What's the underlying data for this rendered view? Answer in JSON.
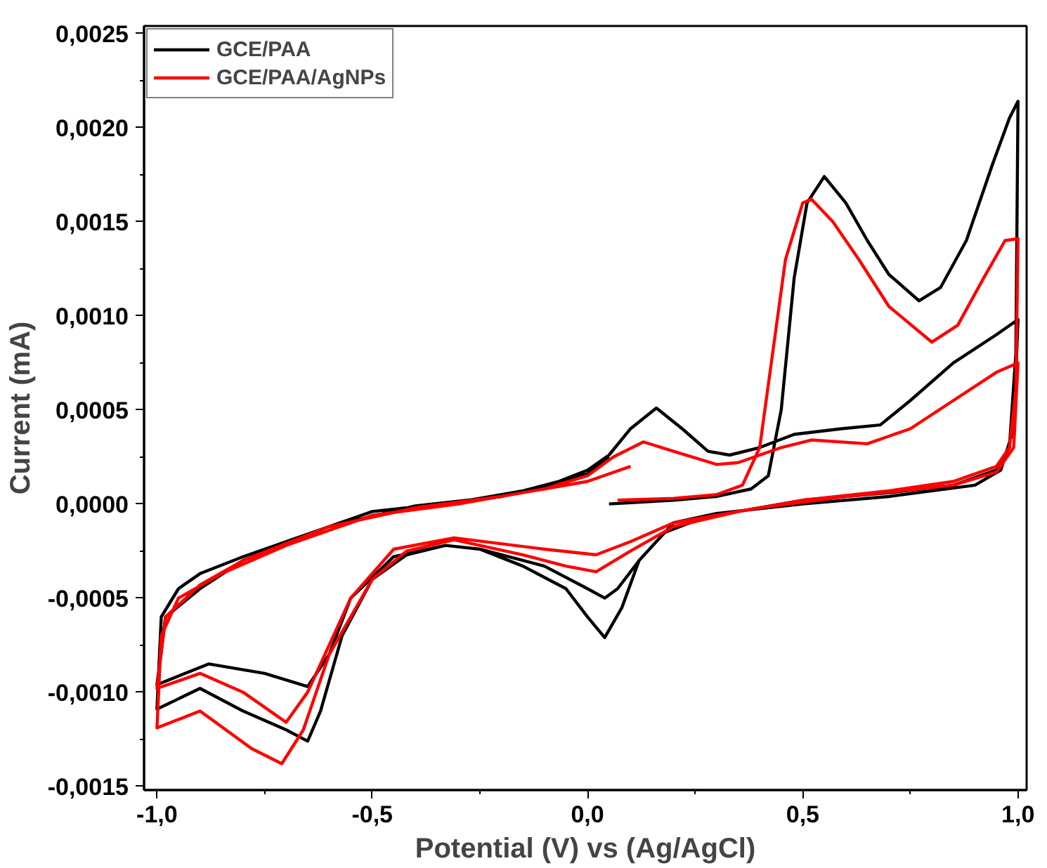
{
  "chart_data": {
    "type": "line",
    "xlabel": "Potential (V) vs (Ag/AgCl)",
    "ylabel": "Current (mA)",
    "xlim": [
      -1.03,
      1.02
    ],
    "ylim": [
      -0.00152,
      0.00254
    ],
    "xticks": [
      {
        "value": -1.0,
        "label": "-1,0"
      },
      {
        "value": -0.75,
        "label": null
      },
      {
        "value": -0.5,
        "label": "-0,5"
      },
      {
        "value": -0.25,
        "label": null
      },
      {
        "value": 0.0,
        "label": "0,0"
      },
      {
        "value": 0.25,
        "label": null
      },
      {
        "value": 0.5,
        "label": "0,5"
      },
      {
        "value": 0.75,
        "label": null
      },
      {
        "value": 1.0,
        "label": "1,0"
      }
    ],
    "yticks": [
      {
        "value": -0.0015,
        "label": "-0,0015"
      },
      {
        "value": -0.00125,
        "label": null
      },
      {
        "value": -0.001,
        "label": "-0,0010"
      },
      {
        "value": -0.00075,
        "label": null
      },
      {
        "value": -0.0005,
        "label": "-0,0005"
      },
      {
        "value": -0.00025,
        "label": null
      },
      {
        "value": 0.0,
        "label": "0,0000"
      },
      {
        "value": 0.00025,
        "label": null
      },
      {
        "value": 0.0005,
        "label": "0,0005"
      },
      {
        "value": 0.00075,
        "label": null
      },
      {
        "value": 0.001,
        "label": "0,0010"
      },
      {
        "value": 0.00125,
        "label": null
      },
      {
        "value": 0.0015,
        "label": "0,0015"
      },
      {
        "value": 0.00175,
        "label": null
      },
      {
        "value": 0.002,
        "label": "0,0020"
      },
      {
        "value": 0.00225,
        "label": null
      },
      {
        "value": 0.0025,
        "label": "0,0025"
      }
    ],
    "grid": false,
    "legend": "top left",
    "marker": "none",
    "line_style": "solid",
    "series": [
      {
        "name": "GCE/PAA",
        "color": "#000000",
        "x": [
          0.05,
          0.2,
          0.3,
          0.38,
          0.42,
          0.45,
          0.48,
          0.51,
          0.55,
          0.6,
          0.65,
          0.7,
          0.77,
          0.82,
          0.88,
          0.94,
          0.98,
          1.0,
          0.995,
          0.98,
          0.95,
          0.85,
          0.7,
          0.5,
          0.35,
          0.25,
          0.18,
          0.12,
          0.08,
          0.04,
          0.0,
          -0.05,
          -0.15,
          -0.25,
          -0.33,
          -0.42,
          -0.5,
          -0.57,
          -0.62,
          -0.65,
          -0.7,
          -0.8,
          -0.9,
          -1.0,
          -0.99,
          -0.95,
          -0.9,
          -0.8,
          -0.65,
          -0.5,
          -0.3,
          -0.1,
          0.0,
          0.05,
          0.1,
          0.16,
          0.22,
          0.28,
          0.33,
          0.4,
          0.48,
          0.59,
          0.68,
          0.75,
          0.85,
          0.95,
          1.0,
          0.99,
          0.96,
          0.9,
          0.7,
          0.5,
          0.3,
          0.2,
          0.12,
          0.07,
          0.04,
          0.0,
          -0.1,
          -0.25,
          -0.33,
          -0.45,
          -0.55,
          -0.6,
          -0.65,
          -0.75,
          -0.88,
          -1.0,
          -0.98,
          -0.9,
          -0.8,
          -0.6,
          -0.4,
          -0.2,
          0.0,
          0.05
        ],
        "values": [
          0.0,
          2e-05,
          4e-05,
          8e-05,
          0.00015,
          0.0005,
          0.0012,
          0.0016,
          0.00174,
          0.0016,
          0.0014,
          0.00122,
          0.00108,
          0.00115,
          0.0014,
          0.0018,
          0.00205,
          0.00214,
          0.0008,
          0.0003,
          0.00018,
          0.0001,
          6e-05,
          2e-05,
          -4e-05,
          -9e-05,
          -0.00015,
          -0.0003,
          -0.00055,
          -0.00071,
          -0.0006,
          -0.00045,
          -0.00033,
          -0.00024,
          -0.00022,
          -0.00027,
          -0.0004,
          -0.0007,
          -0.0011,
          -0.00126,
          -0.0012,
          -0.0011,
          -0.00098,
          -0.00109,
          -0.0006,
          -0.00045,
          -0.00037,
          -0.00028,
          -0.00016,
          -4e-05,
          1e-05,
          9e-05,
          0.00018,
          0.00026,
          0.0004,
          0.00051,
          0.0004,
          0.00028,
          0.00026,
          0.0003,
          0.00037,
          0.0004,
          0.00042,
          0.00055,
          0.00075,
          0.0009,
          0.00098,
          0.0004,
          0.00018,
          0.0001,
          4e-05,
          0.0,
          -5e-05,
          -0.0001,
          -0.0003,
          -0.00045,
          -0.0005,
          -0.00045,
          -0.00033,
          -0.00024,
          -0.00022,
          -0.00028,
          -0.0005,
          -0.0008,
          -0.00097,
          -0.0009,
          -0.00085,
          -0.00096,
          -0.0006,
          -0.00045,
          -0.0003,
          -0.00012,
          -1e-05,
          4e-05,
          0.00016,
          0.00025
        ]
      },
      {
        "name": "GCE/PAA/AgNPs",
        "color": "#ff0000",
        "x": [
          0.07,
          0.2,
          0.3,
          0.36,
          0.4,
          0.43,
          0.46,
          0.5,
          0.52,
          0.57,
          0.63,
          0.7,
          0.8,
          0.86,
          0.92,
          0.97,
          1.0,
          0.995,
          0.98,
          0.95,
          0.85,
          0.7,
          0.5,
          0.35,
          0.2,
          0.1,
          0.02,
          -0.05,
          -0.15,
          -0.31,
          -0.42,
          -0.5,
          -0.6,
          -0.66,
          -0.71,
          -0.78,
          -0.9,
          -1.0,
          -0.99,
          -0.95,
          -0.85,
          -0.7,
          -0.5,
          -0.3,
          -0.1,
          0.0,
          0.06,
          0.13,
          0.2,
          0.3,
          0.35,
          0.45,
          0.52,
          0.65,
          0.75,
          0.85,
          0.95,
          1.0,
          0.99,
          0.95,
          0.85,
          0.6,
          0.4,
          0.2,
          0.1,
          0.02,
          -0.1,
          -0.31,
          -0.45,
          -0.55,
          -0.65,
          -0.7,
          -0.8,
          -0.9,
          -1.0,
          -0.98,
          -0.9,
          -0.8,
          -0.6,
          -0.4,
          -0.2,
          0.0,
          0.1
        ],
        "values": [
          2e-05,
          3e-05,
          5e-05,
          0.0001,
          0.0003,
          0.0008,
          0.0013,
          0.0016,
          0.00162,
          0.0015,
          0.0013,
          0.00105,
          0.00086,
          0.00095,
          0.0012,
          0.0014,
          0.00141,
          0.0006,
          0.0003,
          0.0002,
          0.00012,
          7e-05,
          2e-05,
          -4e-05,
          -0.00012,
          -0.00025,
          -0.00036,
          -0.00033,
          -0.00027,
          -0.00019,
          -0.00025,
          -0.0004,
          -0.0008,
          -0.0012,
          -0.00138,
          -0.0013,
          -0.0011,
          -0.00119,
          -0.0007,
          -0.0005,
          -0.00037,
          -0.00022,
          -6e-05,
          0.0,
          8e-05,
          0.00015,
          0.00025,
          0.00033,
          0.00028,
          0.00021,
          0.00022,
          0.0003,
          0.00034,
          0.00032,
          0.0004,
          0.00055,
          0.0007,
          0.00075,
          0.0003,
          0.00017,
          0.0001,
          4e-05,
          -2e-05,
          -0.0001,
          -0.0002,
          -0.00027,
          -0.00024,
          -0.00018,
          -0.00024,
          -0.0005,
          -0.001,
          -0.00116,
          -0.001,
          -0.0009,
          -0.00098,
          -0.0006,
          -0.00043,
          -0.0003,
          -0.00012,
          -2e-05,
          4e-05,
          0.00012,
          0.0002
        ]
      }
    ]
  }
}
